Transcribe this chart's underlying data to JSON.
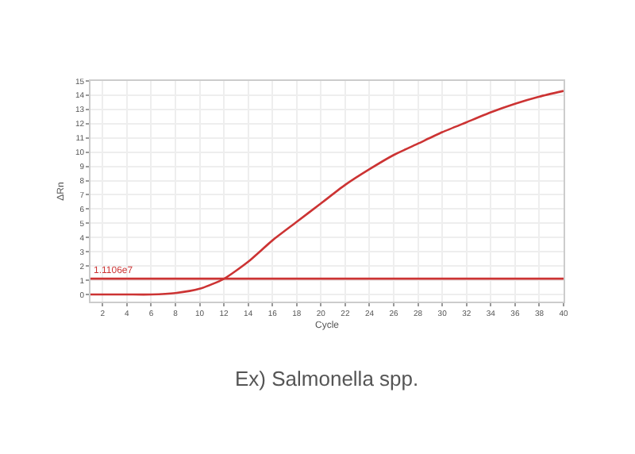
{
  "chart_data": {
    "type": "line",
    "xlabel": "Cycle",
    "ylabel": "ΔRn",
    "x": [
      1,
      2,
      4,
      6,
      8,
      10,
      12,
      14,
      16,
      18,
      20,
      22,
      24,
      26,
      28,
      30,
      32,
      34,
      36,
      38,
      40
    ],
    "series": [
      {
        "color": "#cc3333",
        "values": [
          0,
          0,
          0,
          0,
          0.1,
          0.4,
          1.1,
          2.3,
          3.8,
          5.1,
          6.4,
          7.7,
          8.8,
          9.8,
          10.6,
          11.4,
          12.1,
          12.8,
          13.4,
          13.9,
          14.3
        ]
      }
    ],
    "xlim": [
      1,
      40
    ],
    "xticks": [
      2,
      4,
      6,
      8,
      10,
      12,
      14,
      16,
      18,
      20,
      22,
      24,
      26,
      28,
      30,
      32,
      34,
      36,
      38,
      40
    ],
    "ylim": [
      -0.5,
      15
    ],
    "yticks": [
      0,
      1,
      2,
      3,
      4,
      5,
      6,
      7,
      8,
      9,
      10,
      11,
      12,
      13,
      14,
      15
    ],
    "ref_lines": [
      {
        "axis": "y",
        "value": 1.11,
        "label": "1.1106e7",
        "color": "#cc3333"
      }
    ],
    "annotations": [
      "Ex) Salmonella spp."
    ],
    "grid": true,
    "marker": "none",
    "line_style": "solid"
  }
}
